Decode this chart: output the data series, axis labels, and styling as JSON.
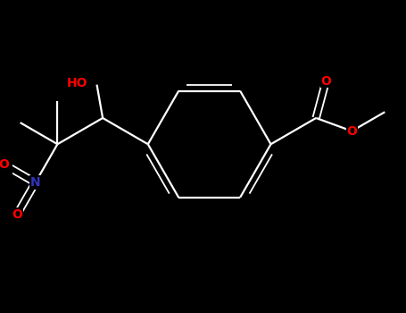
{
  "bg_color": "#000000",
  "bond_color": "#ffffff",
  "atom_colors": {
    "O": "#ff0000",
    "N": "#3333bb",
    "C": "#ffffff"
  },
  "figsize": [
    4.55,
    3.5
  ],
  "dpi": 100,
  "lw": 1.6,
  "lw_double": 1.3,
  "fontsize": 10
}
